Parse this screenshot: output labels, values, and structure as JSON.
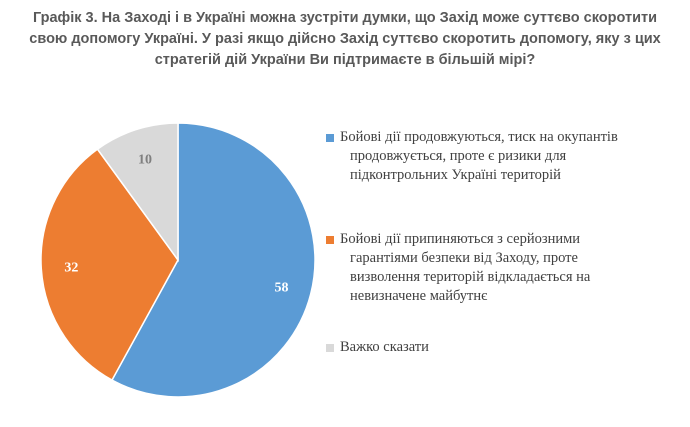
{
  "title_lines": [
    "Графік 3. На Заході і в Україні можна зустріти думки, що Захід може суттєво скоротити",
    "свою допомогу Україні. У разі якщо дійсно Захід суттєво скоротить допомогу, яку з цих",
    "стратегій дій України Ви підтримаєте в більшій мірі?"
  ],
  "chart_data": {
    "type": "pie",
    "title": "Графік 3. На Заході і в Україні можна зустріти думки, що Захід може суттєво скоротити свою допомогу Україні. У разі якщо дійсно Захід суттєво скоротить допомогу, яку з цих стратегій дій України Ви підтримаєте в більшій мірі?",
    "legend_position": "right",
    "slices": [
      {
        "label": "Бойові дії продовжуються, тиск на окупантів продовжується, проте є ризики для підконтрольних Україні територій",
        "label_lines": [
          "Бойові дії продовжуються, тиск на окупантів",
          "продовжується, проте є ризики для",
          "підконтрольних Україні територій"
        ],
        "value": 58,
        "value_label": "58",
        "color": "#5B9BD5",
        "label_color": "#ffffff"
      },
      {
        "label": "Бойові дії припиняються з серйозними гарантіями безпеки від Заходу, проте визволення територій відкладається на невизначене майбутнє",
        "label_lines": [
          "Бойові дії припиняються з серйозними",
          "гарантіями безпеки від Заходу, проте",
          "визволення територій відкладається на",
          "невизначене майбутнє"
        ],
        "value": 32,
        "value_label": "32",
        "color": "#ED7D31",
        "label_color": "#ffffff"
      },
      {
        "label": "Важко сказати",
        "label_lines": [
          "Важко сказати"
        ],
        "value": 10,
        "value_label": "10",
        "color": "#D9D9D9",
        "label_color": "#7f7f7f"
      }
    ]
  }
}
